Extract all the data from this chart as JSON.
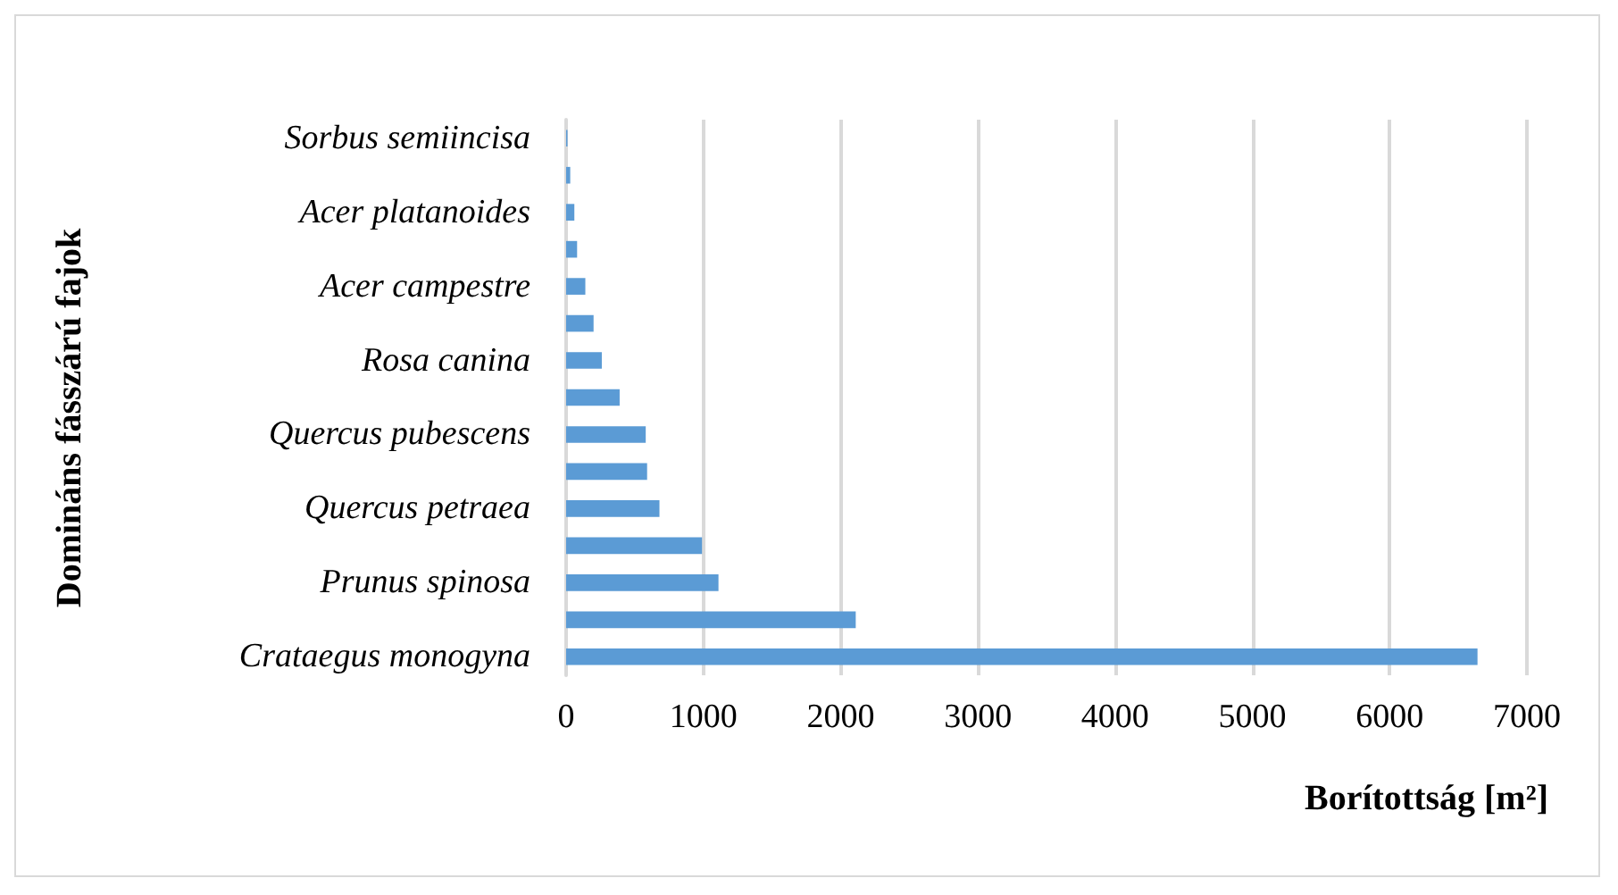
{
  "chart_data": {
    "type": "bar",
    "orientation": "horizontal",
    "xlabel": "Borítottság [m²]",
    "ylabel": "Domináns fásszárú fajok",
    "categories": [
      "Sorbus semiincisa",
      null,
      "Acer platanoides",
      null,
      "Acer campestre",
      null,
      "Rosa canina",
      null,
      "Quercus pubescens",
      null,
      "Quercus petraea",
      null,
      "Prunus spinosa",
      null,
      "Crataegus monogyna"
    ],
    "values": [
      10,
      30,
      60,
      80,
      140,
      200,
      260,
      390,
      580,
      590,
      680,
      990,
      1110,
      2110,
      6640
    ],
    "color": "#5b9bd5",
    "xlim": [
      0,
      7000
    ],
    "xticks": [
      0,
      1000,
      2000,
      3000,
      4000,
      5000,
      6000,
      7000
    ],
    "grid": "x"
  }
}
